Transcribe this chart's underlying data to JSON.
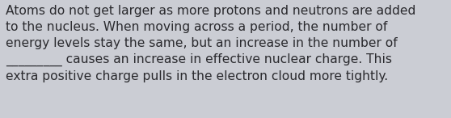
{
  "line1": "Atoms do not get larger as more protons and neutrons are added",
  "line2": "to the nucleus. When moving across a period, the number of",
  "line3": "energy levels stay the same, but an increase in the number of",
  "line4": "_________ causes an increase in effective nuclear charge. This",
  "line5": "extra positive charge pulls in the electron cloud more tightly.",
  "background_color": "#cbcdd4",
  "text_color": "#2a2a2e",
  "font_size": 11.2,
  "font_family": "DejaVu Sans",
  "fig_width": 5.58,
  "fig_height": 1.46,
  "dpi": 100
}
